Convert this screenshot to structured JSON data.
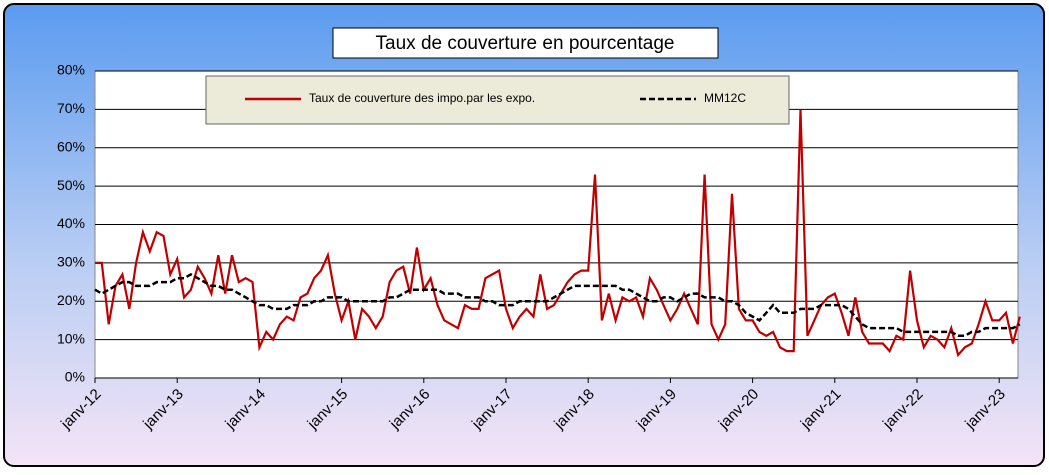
{
  "chart_data": {
    "type": "line",
    "title": "Taux de couverture en pourcentage",
    "categories": [
      "janv-12",
      null,
      null,
      null,
      null,
      null,
      null,
      null,
      null,
      null,
      null,
      null,
      "janv-13",
      null,
      null,
      null,
      null,
      null,
      null,
      null,
      null,
      null,
      null,
      null,
      "janv-14",
      null,
      null,
      null,
      null,
      null,
      null,
      null,
      null,
      null,
      null,
      null,
      "janv-15",
      null,
      null,
      null,
      null,
      null,
      null,
      null,
      null,
      null,
      null,
      null,
      "janv-16",
      null,
      null,
      null,
      null,
      null,
      null,
      null,
      null,
      null,
      null,
      null,
      "janv-17",
      null,
      null,
      null,
      null,
      null,
      null,
      null,
      null,
      null,
      null,
      null,
      "janv-18",
      null,
      null,
      null,
      null,
      null,
      null,
      null,
      null,
      null,
      null,
      null,
      "janv-19",
      null,
      null,
      null,
      null,
      null,
      null,
      null,
      null,
      null,
      null,
      null,
      "janv-20",
      null,
      null,
      null,
      null,
      null,
      null,
      null,
      null,
      null,
      null,
      null,
      "janv-21",
      null,
      null,
      null,
      null,
      null,
      null,
      null,
      null,
      null,
      null,
      null,
      "janv-22",
      null,
      null,
      null,
      null,
      null,
      null,
      null,
      null,
      null,
      null,
      null,
      "janv-23",
      null,
      null,
      null
    ],
    "series": [
      {
        "name": "Taux de couverture des impo.par les expo.",
        "color": "#c00000",
        "dash": false,
        "values": [
          30,
          30,
          14,
          24,
          27,
          18,
          30,
          38,
          33,
          38,
          37,
          27,
          31,
          21,
          23,
          29,
          26,
          22,
          32,
          22,
          32,
          25,
          26,
          25,
          8,
          12,
          10,
          14,
          16,
          15,
          21,
          22,
          26,
          28,
          32,
          22,
          15,
          20,
          10,
          18,
          16,
          13,
          16,
          25,
          28,
          29,
          22,
          34,
          23,
          26,
          19,
          15,
          14,
          13,
          19,
          18,
          18,
          26,
          27,
          28,
          18,
          13,
          16,
          18,
          16,
          27,
          18,
          19,
          22,
          25,
          27,
          28,
          28,
          53,
          15,
          22,
          15,
          21,
          20,
          21,
          16,
          26,
          23,
          19,
          15,
          18,
          22,
          18,
          14,
          53,
          14,
          10,
          14,
          48,
          18,
          15,
          15,
          12,
          11,
          12,
          8,
          7,
          7,
          70,
          11,
          15,
          19,
          21,
          22,
          17,
          11,
          21,
          12,
          9,
          9,
          9,
          7,
          11,
          10,
          28,
          15,
          8,
          11,
          10,
          8,
          13,
          6,
          8,
          9,
          14,
          20,
          15,
          15,
          17,
          9,
          16
        ]
      },
      {
        "name": "MM12C",
        "color": "#000000",
        "dash": true,
        "values": [
          23,
          22,
          23,
          24,
          25,
          25,
          24,
          24,
          24,
          25,
          25,
          25,
          26,
          26,
          27,
          26,
          25,
          24,
          24,
          23,
          23,
          22,
          21,
          20,
          19,
          19,
          18,
          18,
          18,
          19,
          19,
          19,
          20,
          20,
          21,
          21,
          21,
          20,
          20,
          20,
          20,
          20,
          20,
          21,
          21,
          22,
          23,
          23,
          23,
          23,
          23,
          22,
          22,
          22,
          21,
          21,
          21,
          20,
          20,
          19,
          19,
          19,
          20,
          20,
          20,
          20,
          20,
          21,
          22,
          23,
          24,
          24,
          24,
          24,
          24,
          24,
          24,
          23,
          23,
          22,
          21,
          20,
          20,
          21,
          21,
          20,
          21,
          22,
          22,
          21,
          21,
          21,
          20,
          20,
          19,
          17,
          16,
          15,
          17,
          19,
          17,
          17,
          17,
          18,
          18,
          18,
          19,
          19,
          19,
          19,
          18,
          16,
          14,
          13,
          13,
          13,
          13,
          13,
          12,
          12,
          12,
          12,
          12,
          12,
          12,
          12,
          11,
          11,
          12,
          12,
          13,
          13,
          13,
          13,
          13,
          14
        ]
      }
    ],
    "ylim": [
      0,
      80
    ],
    "yticks": [
      {
        "value": 0,
        "label": "0%"
      },
      {
        "value": 10,
        "label": "10%"
      },
      {
        "value": 20,
        "label": "20%"
      },
      {
        "value": 30,
        "label": "30%"
      },
      {
        "value": 40,
        "label": "40%"
      },
      {
        "value": 50,
        "label": "50%"
      },
      {
        "value": 60,
        "label": "60%"
      },
      {
        "value": 70,
        "label": "70%"
      },
      {
        "value": 80,
        "label": "80%"
      }
    ],
    "grid": true
  }
}
